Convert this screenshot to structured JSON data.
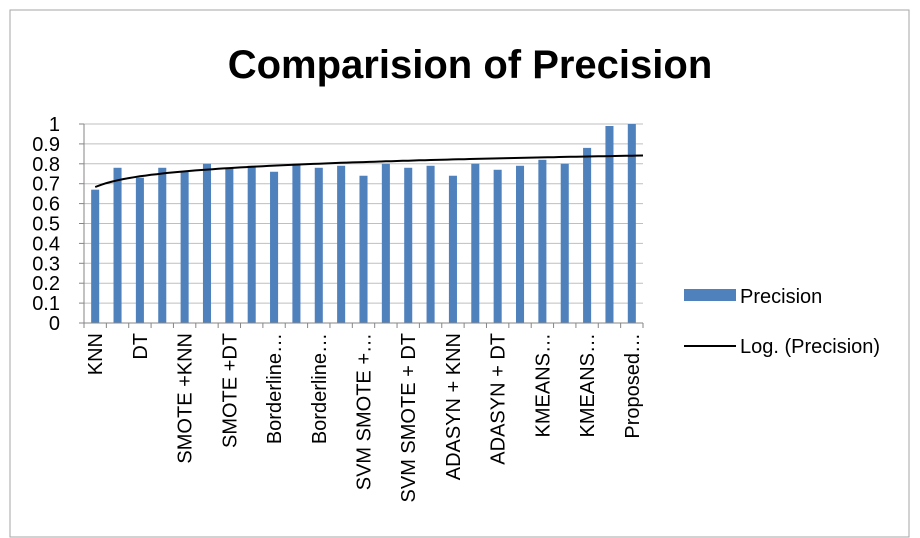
{
  "chart_data": {
    "type": "bar",
    "title": "Comparision of Precision",
    "xlabel": "",
    "ylabel": "",
    "categories": [
      "KNN",
      "",
      "DT",
      "",
      "SMOTE +KNN",
      "",
      "SMOTE +DT",
      "",
      "Borderline…",
      "",
      "Borderline…",
      "",
      "SVM SMOTE +…",
      "",
      "SVM SMOTE + DT",
      "",
      "ADASYN + KNN",
      "",
      "ADASYN + DT",
      "",
      "KMEANS…",
      "",
      "KMEANS…",
      "",
      "Proposed…"
    ],
    "series": [
      {
        "name": "Precision",
        "color": "#4F81BD",
        "values": [
          0.67,
          0.78,
          0.73,
          0.78,
          0.76,
          0.8,
          0.78,
          0.79,
          0.76,
          0.8,
          0.78,
          0.79,
          0.74,
          0.8,
          0.78,
          0.79,
          0.74,
          0.8,
          0.77,
          0.79,
          0.82,
          0.8,
          0.88,
          0.99,
          1.0
        ]
      }
    ],
    "trendline": {
      "name": "Log. (Precision)",
      "type": "logarithmic",
      "color": "#000000"
    },
    "ylim": [
      0,
      1
    ],
    "yticks": [
      "0",
      "0.1",
      "0.2",
      "0.3",
      "0.4",
      "0.5",
      "0.6",
      "0.7",
      "0.8",
      "0.9",
      "1"
    ],
    "grid": true,
    "legend": "right"
  }
}
